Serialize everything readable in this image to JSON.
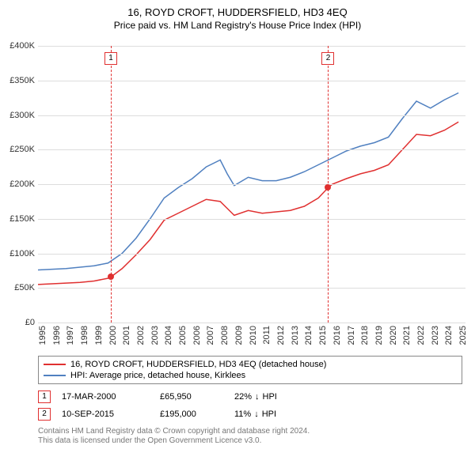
{
  "title": "16, ROYD CROFT, HUDDERSFIELD, HD3 4EQ",
  "subtitle": "Price paid vs. HM Land Registry's House Price Index (HPI)",
  "chart": {
    "type": "line",
    "background_color": "#ffffff",
    "grid_color": "#dddddd",
    "xlim": [
      1995,
      2025.5
    ],
    "ylim": [
      0,
      400000
    ],
    "yticks": [
      0,
      50000,
      100000,
      150000,
      200000,
      250000,
      300000,
      350000,
      400000
    ],
    "ytick_labels": [
      "£0",
      "£50K",
      "£100K",
      "£150K",
      "£200K",
      "£250K",
      "£300K",
      "£350K",
      "£400K"
    ],
    "xticks": [
      1995,
      1996,
      1997,
      1998,
      1999,
      2000,
      2001,
      2002,
      2003,
      2004,
      2005,
      2006,
      2007,
      2008,
      2009,
      2010,
      2011,
      2012,
      2013,
      2014,
      2015,
      2016,
      2017,
      2018,
      2019,
      2020,
      2021,
      2022,
      2023,
      2024,
      2025
    ],
    "label_fontsize": 11,
    "series": [
      {
        "name": "property",
        "label": "16, ROYD CROFT, HUDDERSFIELD, HD3 4EQ (detached house)",
        "color": "#e03030",
        "line_width": 1.5,
        "points": [
          [
            1995,
            55000
          ],
          [
            1996,
            56000
          ],
          [
            1997,
            57000
          ],
          [
            1998,
            58000
          ],
          [
            1999,
            60000
          ],
          [
            2000,
            64000
          ],
          [
            2000.2,
            65950
          ],
          [
            2001,
            78000
          ],
          [
            2002,
            98000
          ],
          [
            2003,
            120000
          ],
          [
            2004,
            148000
          ],
          [
            2005,
            158000
          ],
          [
            2006,
            168000
          ],
          [
            2007,
            178000
          ],
          [
            2008,
            175000
          ],
          [
            2008.5,
            165000
          ],
          [
            2009,
            155000
          ],
          [
            2010,
            162000
          ],
          [
            2011,
            158000
          ],
          [
            2012,
            160000
          ],
          [
            2013,
            162000
          ],
          [
            2014,
            168000
          ],
          [
            2015,
            180000
          ],
          [
            2015.7,
            195000
          ],
          [
            2016,
            200000
          ],
          [
            2017,
            208000
          ],
          [
            2018,
            215000
          ],
          [
            2019,
            220000
          ],
          [
            2020,
            228000
          ],
          [
            2021,
            250000
          ],
          [
            2022,
            272000
          ],
          [
            2023,
            270000
          ],
          [
            2024,
            278000
          ],
          [
            2025,
            290000
          ]
        ]
      },
      {
        "name": "hpi",
        "label": "HPI: Average price, detached house, Kirklees",
        "color": "#5080c0",
        "line_width": 1.5,
        "points": [
          [
            1995,
            76000
          ],
          [
            1996,
            77000
          ],
          [
            1997,
            78000
          ],
          [
            1998,
            80000
          ],
          [
            1999,
            82000
          ],
          [
            2000,
            86000
          ],
          [
            2001,
            100000
          ],
          [
            2002,
            122000
          ],
          [
            2003,
            150000
          ],
          [
            2004,
            180000
          ],
          [
            2005,
            195000
          ],
          [
            2006,
            208000
          ],
          [
            2007,
            225000
          ],
          [
            2008,
            235000
          ],
          [
            2008.5,
            215000
          ],
          [
            2009,
            198000
          ],
          [
            2010,
            210000
          ],
          [
            2011,
            205000
          ],
          [
            2012,
            205000
          ],
          [
            2013,
            210000
          ],
          [
            2014,
            218000
          ],
          [
            2015,
            228000
          ],
          [
            2016,
            238000
          ],
          [
            2017,
            248000
          ],
          [
            2018,
            255000
          ],
          [
            2019,
            260000
          ],
          [
            2020,
            268000
          ],
          [
            2021,
            295000
          ],
          [
            2022,
            320000
          ],
          [
            2023,
            310000
          ],
          [
            2024,
            322000
          ],
          [
            2025,
            332000
          ]
        ]
      }
    ],
    "markers": [
      {
        "n": "1",
        "x": 2000.2,
        "y": 65950
      },
      {
        "n": "2",
        "x": 2015.7,
        "y": 195000
      }
    ]
  },
  "legend": {
    "items": [
      {
        "color": "#e03030",
        "label": "16, ROYD CROFT, HUDDERSFIELD, HD3 4EQ (detached house)"
      },
      {
        "color": "#5080c0",
        "label": "HPI: Average price, detached house, Kirklees"
      }
    ]
  },
  "sales": [
    {
      "n": "1",
      "date": "17-MAR-2000",
      "price": "£65,950",
      "hpi_delta": "22%",
      "arrow": "↓",
      "hpi_label": "HPI"
    },
    {
      "n": "2",
      "date": "10-SEP-2015",
      "price": "£195,000",
      "hpi_delta": "11%",
      "arrow": "↓",
      "hpi_label": "HPI"
    }
  ],
  "attribution": {
    "line1": "Contains HM Land Registry data © Crown copyright and database right 2024.",
    "line2": "This data is licensed under the Open Government Licence v3.0."
  }
}
